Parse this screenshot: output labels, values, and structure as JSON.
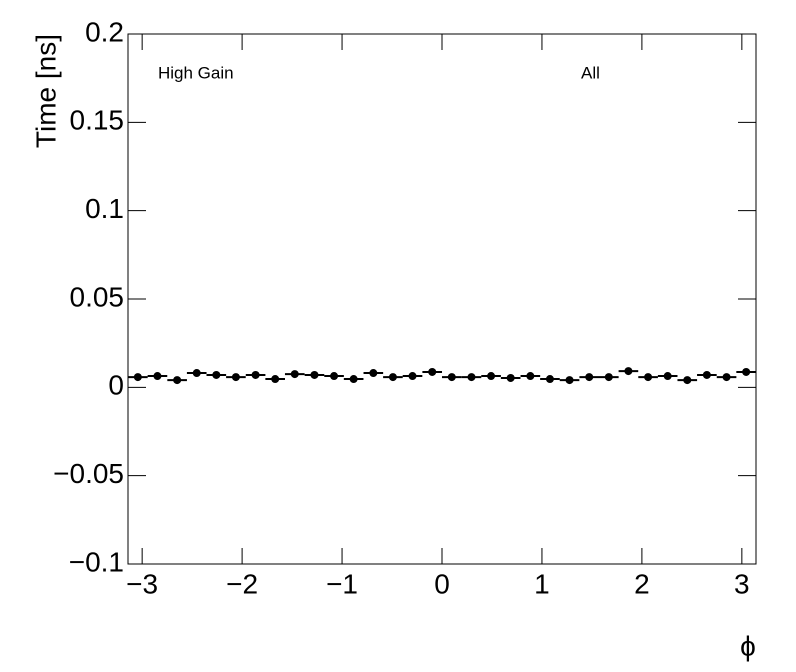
{
  "chart_data": {
    "type": "scatter",
    "ylabel": "Time [ns]",
    "xlabel": "ϕ",
    "annotations": [
      "High Gain",
      "All"
    ],
    "xlim": [
      -3.1416,
      3.1416
    ],
    "ylim": [
      -0.1,
      0.2
    ],
    "xticks": [
      {
        "value": -3,
        "label": "−3"
      },
      {
        "value": -2,
        "label": "−2"
      },
      {
        "value": -1,
        "label": "−1"
      },
      0,
      1,
      2,
      3
    ],
    "yticks": [
      {
        "value": -0.1,
        "label": "−0.1"
      },
      {
        "value": -0.05,
        "label": "−0.05"
      },
      0,
      0.05,
      0.1,
      0.15,
      0.2
    ],
    "color": "#000000",
    "x": [
      -3.043,
      -2.847,
      -2.65,
      -2.454,
      -2.258,
      -2.062,
      -1.865,
      -1.669,
      -1.473,
      -1.276,
      -1.08,
      -0.884,
      -0.687,
      -0.491,
      -0.295,
      -0.098,
      0.098,
      0.295,
      0.491,
      0.687,
      0.884,
      1.08,
      1.276,
      1.473,
      1.669,
      1.865,
      2.062,
      2.258,
      2.454,
      2.65,
      2.847,
      3.043
    ],
    "values": [
      0.0058,
      0.0064,
      0.0041,
      0.0081,
      0.007,
      0.0058,
      0.007,
      0.0047,
      0.0075,
      0.007,
      0.0064,
      0.0047,
      0.0081,
      0.0058,
      0.0064,
      0.0087,
      0.0058,
      0.0058,
      0.0064,
      0.0053,
      0.0064,
      0.0047,
      0.0041,
      0.0058,
      0.0058,
      0.0092,
      0.0058,
      0.0064,
      0.0041,
      0.007,
      0.0058,
      0.0087
    ]
  }
}
